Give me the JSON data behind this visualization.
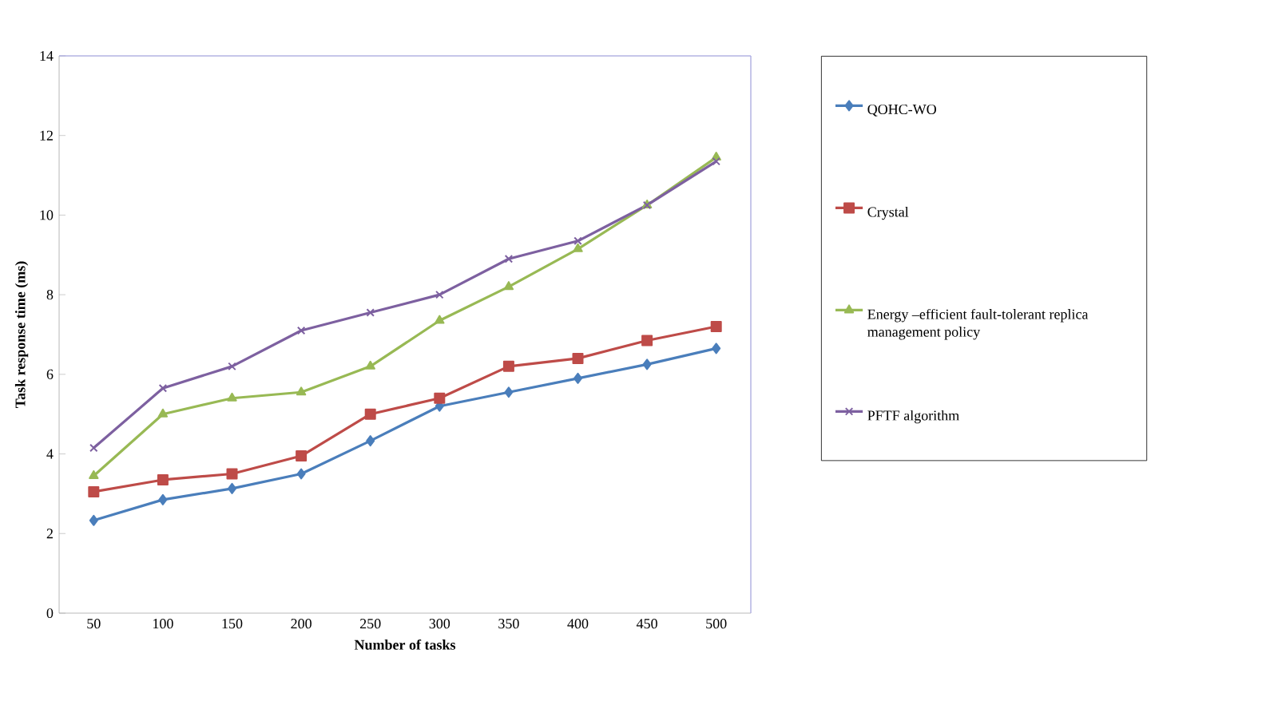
{
  "chart_data": {
    "type": "line",
    "xlabel": "Number of tasks",
    "ylabel": "Task response time (ms)",
    "categories": [
      "50",
      "100",
      "150",
      "200",
      "250",
      "300",
      "350",
      "400",
      "450",
      "500"
    ],
    "ylim": [
      0,
      14
    ],
    "yticks": [
      0,
      2,
      4,
      6,
      8,
      10,
      12,
      14
    ],
    "legend": "right",
    "grid": false,
    "series": [
      {
        "name": "QOHC-WO",
        "color": "#4a7ebb",
        "marker": "diamond",
        "values": [
          2.33,
          2.85,
          3.13,
          3.5,
          4.33,
          5.2,
          5.55,
          5.9,
          6.25,
          6.65
        ]
      },
      {
        "name": "Crystal",
        "color": "#be4b48",
        "marker": "square",
        "values": [
          3.05,
          3.35,
          3.5,
          3.95,
          5.0,
          5.4,
          6.2,
          6.4,
          6.85,
          7.2
        ]
      },
      {
        "name": "Energy –efficient fault-tolerant replica management policy",
        "color": "#98b954",
        "marker": "triangle",
        "values": [
          3.45,
          5.0,
          5.4,
          5.55,
          6.2,
          7.35,
          8.2,
          9.15,
          10.25,
          11.45
        ]
      },
      {
        "name": "PFTF algorithm",
        "color": "#7d60a0",
        "marker": "cross",
        "values": [
          4.15,
          5.65,
          6.2,
          7.1,
          7.55,
          8.0,
          8.9,
          9.35,
          10.25,
          11.35
        ]
      }
    ]
  }
}
